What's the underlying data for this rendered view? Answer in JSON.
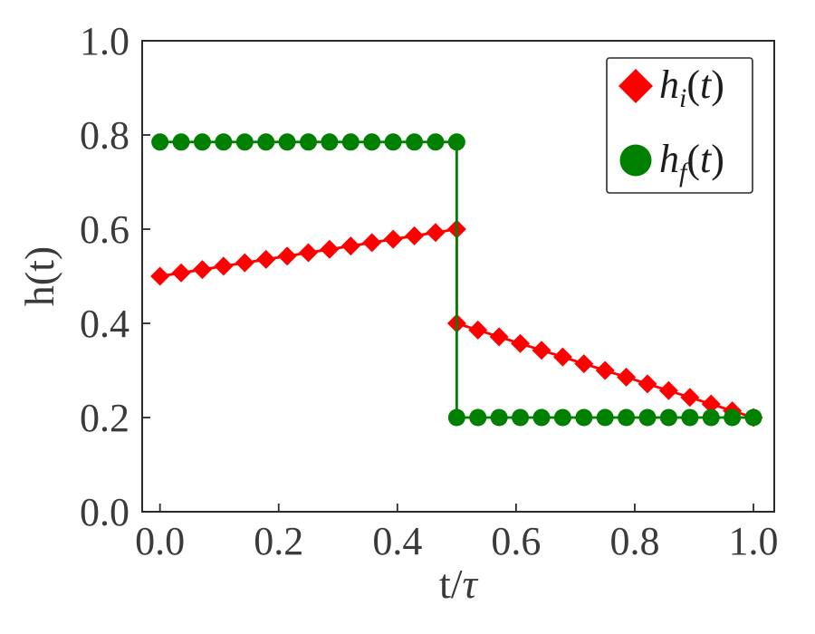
{
  "figure": {
    "background": "#ffffff",
    "text_color": "#3a3a3a",
    "spine_color": "#2a2a2a",
    "legend_text_color": "#1c1c1c"
  },
  "chart_data": {
    "type": "line",
    "title": "",
    "xlabel": "t/τ",
    "ylabel": "h(t)",
    "xlim": [
      -0.03,
      1.035
    ],
    "ylim": [
      0.0,
      1.0
    ],
    "xticks": [
      0.0,
      0.2,
      0.4,
      0.6,
      0.8,
      1.0
    ],
    "yticks": [
      0.0,
      0.2,
      0.4,
      0.6,
      0.8,
      1.0
    ],
    "tick_decimals": 1,
    "grid": false,
    "legend_position": "upper-right",
    "series": [
      {
        "name": "h_i(t)",
        "legend": {
          "base": "h",
          "sub": "i",
          "open": "(",
          "arg": "t",
          "close": ")"
        },
        "color": "#ff0000",
        "marker": "diamond",
        "x": [
          0.0,
          0.0357,
          0.0714,
          0.1071,
          0.1429,
          0.1786,
          0.2143,
          0.25,
          0.2857,
          0.3214,
          0.3571,
          0.3929,
          0.4286,
          0.4643,
          0.5,
          0.5,
          0.5357,
          0.5714,
          0.6071,
          0.6429,
          0.6786,
          0.7143,
          0.75,
          0.7857,
          0.8214,
          0.8571,
          0.8929,
          0.9286,
          0.9643,
          1.0
        ],
        "y": [
          0.5,
          0.5071,
          0.5143,
          0.5214,
          0.5286,
          0.5357,
          0.5429,
          0.55,
          0.5571,
          0.5643,
          0.5714,
          0.5786,
          0.5857,
          0.5929,
          0.6,
          0.4,
          0.3857,
          0.3714,
          0.3571,
          0.3429,
          0.3286,
          0.3143,
          0.3,
          0.2857,
          0.2714,
          0.2571,
          0.2429,
          0.2286,
          0.2143,
          0.2
        ]
      },
      {
        "name": "h_f(t)",
        "legend": {
          "base": "h",
          "sub": "f",
          "open": "(",
          "arg": "t",
          "close": ")"
        },
        "color": "#008000",
        "marker": "circle",
        "x": [
          0.0,
          0.0357,
          0.0714,
          0.1071,
          0.1429,
          0.1786,
          0.2143,
          0.25,
          0.2857,
          0.3214,
          0.3571,
          0.3929,
          0.4286,
          0.4643,
          0.5,
          0.5,
          0.5357,
          0.5714,
          0.6071,
          0.6429,
          0.6786,
          0.7143,
          0.75,
          0.7857,
          0.8214,
          0.8571,
          0.8929,
          0.9286,
          0.9643,
          1.0
        ],
        "y": [
          0.785,
          0.785,
          0.785,
          0.785,
          0.785,
          0.785,
          0.785,
          0.785,
          0.785,
          0.785,
          0.785,
          0.785,
          0.785,
          0.785,
          0.785,
          0.2,
          0.2,
          0.2,
          0.2,
          0.2,
          0.2,
          0.2,
          0.2,
          0.2,
          0.2,
          0.2,
          0.2,
          0.2,
          0.2,
          0.2
        ]
      }
    ]
  }
}
